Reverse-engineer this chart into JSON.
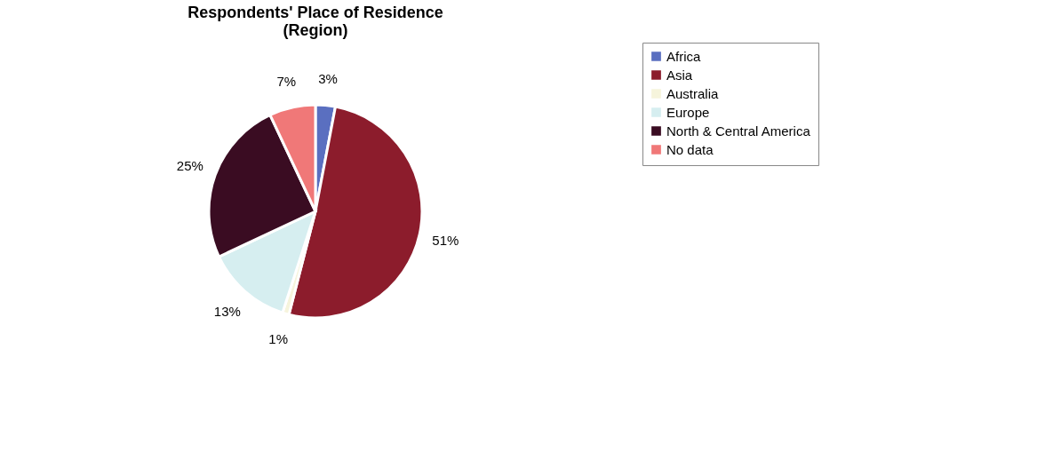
{
  "chart_data": {
    "type": "pie",
    "title": [
      "Respondents' Place of Residence",
      "(Region)"
    ],
    "categories": [
      "Africa",
      "Asia",
      "Australia",
      "Europe",
      "North & Central America",
      "No data"
    ],
    "values": [
      3,
      51,
      1,
      13,
      25,
      7
    ],
    "value_labels": [
      "3%",
      "51%",
      "1%",
      "13%",
      "25%",
      "7%"
    ],
    "colors": [
      "#5a6fc0",
      "#8c1c2c",
      "#f6f4dc",
      "#d6eef0",
      "#3a0c22",
      "#f07878"
    ],
    "legend": "right"
  }
}
